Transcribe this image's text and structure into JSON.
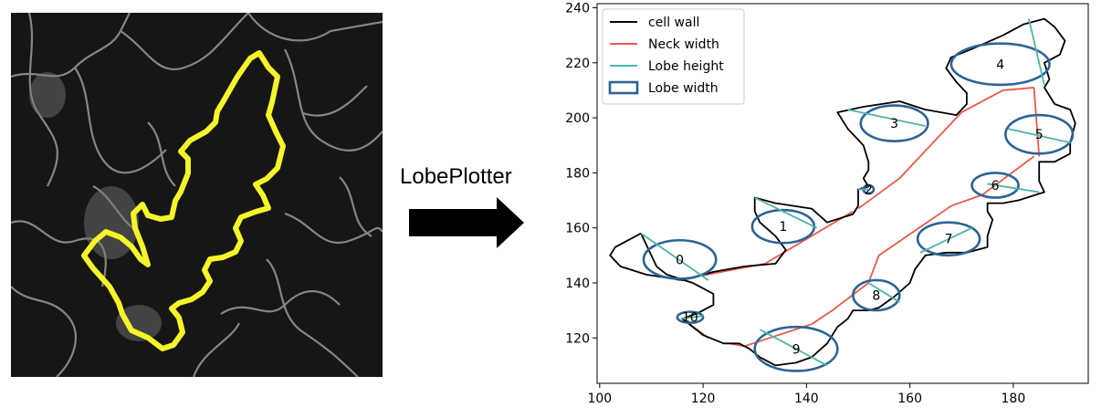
{
  "arrow_label": "LobePlotter",
  "chart_data": {
    "type": "scatter",
    "title": "",
    "xlabel": "",
    "ylabel": "",
    "xlim": [
      99.5,
      194.5
    ],
    "ylim": [
      103.5,
      241.5
    ],
    "xticks": [
      100,
      120,
      140,
      160,
      180
    ],
    "yticks": [
      120,
      140,
      160,
      180,
      200,
      220,
      240
    ],
    "grid": false,
    "legend_position": "top-left",
    "legend": [
      {
        "label": "cell wall",
        "color": "#000000",
        "style": "line"
      },
      {
        "label": "Neck width",
        "color": "#e8584a",
        "style": "line"
      },
      {
        "label": "Lobe height",
        "color": "#4fb3a8",
        "style": "line"
      },
      {
        "label": "Lobe width",
        "color": "#2c6396",
        "style": "box"
      }
    ],
    "cell_wall": [
      [
        108,
        158
      ],
      [
        103,
        153
      ],
      [
        102,
        150
      ],
      [
        104,
        146
      ],
      [
        109,
        143
      ],
      [
        116,
        141
      ],
      [
        122,
        144
      ],
      [
        128,
        146
      ],
      [
        134,
        147
      ],
      [
        136,
        152
      ],
      [
        134,
        157
      ],
      [
        131,
        162
      ],
      [
        130,
        166
      ],
      [
        130,
        171
      ],
      [
        134,
        169
      ],
      [
        141,
        167
      ],
      [
        144,
        162
      ],
      [
        149,
        165
      ],
      [
        150,
        168
      ],
      [
        150,
        174
      ],
      [
        152,
        175
      ],
      [
        151,
        178
      ],
      [
        152,
        181
      ],
      [
        152,
        184
      ],
      [
        151,
        190
      ],
      [
        148,
        196
      ],
      [
        146,
        202
      ],
      [
        151,
        204
      ],
      [
        158,
        206
      ],
      [
        163,
        203
      ],
      [
        169,
        201
      ],
      [
        171,
        205
      ],
      [
        171,
        209
      ],
      [
        169,
        213
      ],
      [
        167,
        218
      ],
      [
        168,
        222
      ],
      [
        172,
        225
      ],
      [
        178,
        230
      ],
      [
        182,
        234
      ],
      [
        186,
        236
      ],
      [
        188,
        233
      ],
      [
        190,
        228
      ],
      [
        189,
        223
      ],
      [
        186,
        220
      ],
      [
        187,
        214
      ],
      [
        186,
        211
      ],
      [
        188,
        205
      ],
      [
        191,
        203
      ],
      [
        192,
        198
      ],
      [
        191,
        191
      ],
      [
        191,
        187
      ],
      [
        188,
        184
      ],
      [
        185,
        184
      ],
      [
        185,
        181
      ],
      [
        185,
        177
      ],
      [
        186,
        173
      ],
      [
        181,
        170
      ],
      [
        178,
        169
      ],
      [
        175,
        169
      ],
      [
        175,
        166
      ],
      [
        176,
        163
      ],
      [
        175,
        157
      ],
      [
        175,
        153
      ],
      [
        171,
        151
      ],
      [
        167,
        151
      ],
      [
        163,
        150
      ],
      [
        161,
        145
      ],
      [
        160,
        140
      ],
      [
        157,
        135
      ],
      [
        154,
        131
      ],
      [
        152,
        130
      ],
      [
        149,
        130
      ],
      [
        148,
        127
      ],
      [
        146,
        124
      ],
      [
        144,
        118
      ],
      [
        141,
        113
      ],
      [
        138,
        111
      ],
      [
        134,
        110
      ],
      [
        131,
        113
      ],
      [
        129,
        116
      ],
      [
        127,
        118
      ],
      [
        124,
        118
      ],
      [
        120,
        121
      ],
      [
        116,
        127
      ],
      [
        119,
        129
      ],
      [
        122,
        132
      ],
      [
        122,
        136
      ],
      [
        118,
        140
      ],
      [
        113,
        143
      ],
      [
        111,
        146
      ],
      [
        108,
        158
      ]
    ],
    "neck_widths": [
      [
        [
          115,
          141
        ],
        [
          132,
          147
        ]
      ],
      [
        [
          132,
          147
        ],
        [
          149,
          166
        ]
      ],
      [
        [
          150,
          167
        ],
        [
          158,
          178
        ]
      ],
      [
        [
          158,
          178
        ],
        [
          163,
          188
        ]
      ],
      [
        [
          163,
          188
        ],
        [
          170,
          202
        ]
      ],
      [
        [
          170,
          202
        ],
        [
          178,
          210
        ]
      ],
      [
        [
          178,
          210
        ],
        [
          184,
          211
        ]
      ],
      [
        [
          184,
          211
        ],
        [
          185,
          186
        ]
      ],
      [
        [
          184,
          186
        ],
        [
          174,
          172
        ]
      ],
      [
        [
          174,
          172
        ],
        [
          168,
          168
        ]
      ],
      [
        [
          168,
          168
        ],
        [
          154,
          150
        ]
      ],
      [
        [
          154,
          150
        ],
        [
          152,
          140
        ]
      ],
      [
        [
          152,
          140
        ],
        [
          145,
          130
        ]
      ],
      [
        [
          145,
          130
        ],
        [
          141,
          125
        ]
      ],
      [
        [
          141,
          125
        ],
        [
          128,
          117
        ]
      ],
      [
        [
          128,
          117
        ],
        [
          125,
          118
        ]
      ],
      [
        [
          121,
          120
        ],
        [
          116,
          127
        ]
      ]
    ],
    "lobes": [
      {
        "label": "0",
        "center": [
          115.5,
          148.5
        ],
        "width": 14,
        "height": 14,
        "tilt_deg": 0,
        "height_line": [
          [
            108,
            158
          ],
          [
            121,
            141
          ]
        ]
      },
      {
        "label": "1",
        "center": [
          135.5,
          160.5
        ],
        "width": 12,
        "height": 12,
        "tilt_deg": 0,
        "height_line": [
          [
            130,
            171
          ],
          [
            142,
            160
          ]
        ]
      },
      {
        "label": "2",
        "center": [
          152,
          174
        ],
        "width": 2,
        "height": 3,
        "tilt_deg": 0,
        "height_line": [
          [
            150,
            174
          ],
          [
            152,
            174
          ]
        ]
      },
      {
        "label": "3",
        "center": [
          157,
          198
        ],
        "width": 13,
        "height": 13,
        "tilt_deg": 0,
        "height_line": [
          [
            148,
            203
          ],
          [
            163,
            197
          ]
        ]
      },
      {
        "label": "4",
        "center": [
          177.5,
          219.5
        ],
        "width": 19,
        "height": 15,
        "tilt_deg": 0,
        "height_line": [
          [
            183,
            236
          ],
          [
            186,
            212
          ]
        ]
      },
      {
        "label": "5",
        "center": [
          185,
          194
        ],
        "width": 13,
        "height": 14,
        "tilt_deg": 0,
        "height_line": [
          [
            179,
            196
          ],
          [
            191,
            191
          ]
        ]
      },
      {
        "label": "6",
        "center": [
          176.5,
          175.5
        ],
        "width": 9,
        "height": 9,
        "tilt_deg": 0,
        "height_line": [
          [
            175,
            176
          ],
          [
            185,
            173
          ]
        ]
      },
      {
        "label": "7",
        "center": [
          167.5,
          156
        ],
        "width": 12,
        "height": 12,
        "tilt_deg": 0,
        "height_line": [
          [
            162,
            151
          ],
          [
            172,
            160
          ]
        ]
      },
      {
        "label": "8",
        "center": [
          153.5,
          135.5
        ],
        "width": 9,
        "height": 11,
        "tilt_deg": 0,
        "height_line": [
          [
            152,
            140
          ],
          [
            158,
            133
          ]
        ]
      },
      {
        "label": "9",
        "center": [
          138,
          116
        ],
        "width": 16,
        "height": 16,
        "tilt_deg": 0,
        "height_line": [
          [
            131,
            123
          ],
          [
            144,
            110
          ]
        ]
      },
      {
        "label": "10",
        "center": [
          117.5,
          127.5
        ],
        "width": 5,
        "height": 4,
        "tilt_deg": 0,
        "height_line": [
          [
            116,
            127
          ],
          [
            120,
            128
          ]
        ]
      }
    ]
  }
}
